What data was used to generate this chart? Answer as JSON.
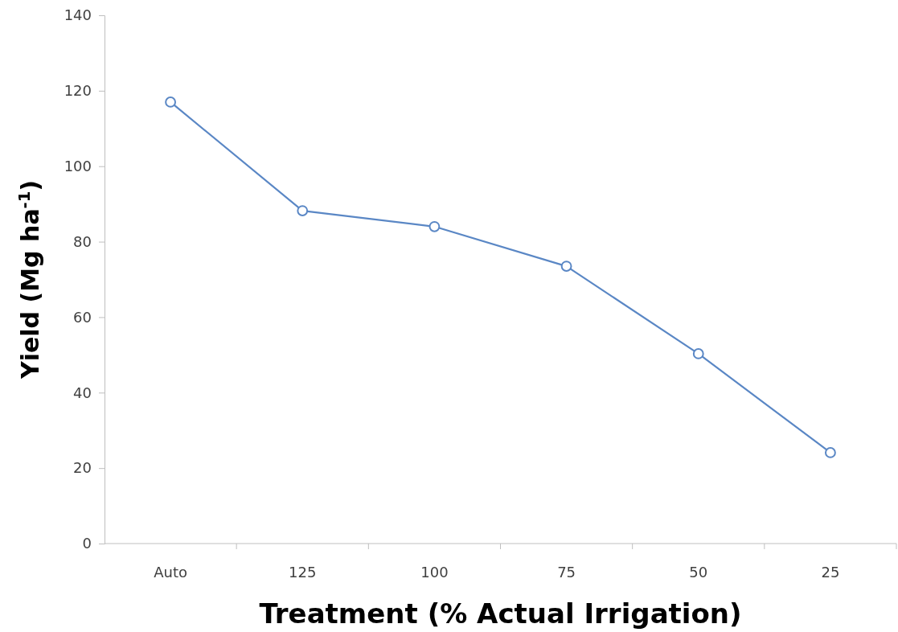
{
  "chart_data": {
    "type": "line",
    "xlabel": "Treatment (% Actual Irrigation)",
    "ylabel": "Yield (Mg ha$^{-1}$)",
    "categories": [
      "Auto",
      "125",
      "100",
      "75",
      "50",
      "25"
    ],
    "series": [
      {
        "color": "#5a87c5",
        "values": [
          117.0,
          88.2,
          84.0,
          73.5,
          50.3,
          24.1
        ]
      }
    ],
    "ylim": [
      0,
      140
    ],
    "yticks": [
      0,
      20,
      40,
      60,
      80,
      100,
      120,
      140
    ],
    "marker": "circle",
    "line_style": "solid"
  }
}
